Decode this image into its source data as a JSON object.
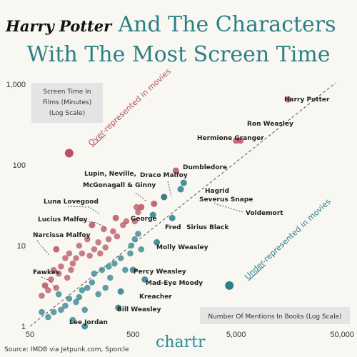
{
  "header": {
    "logo": "Harry Potter",
    "title_line1": "And The Characters",
    "title_line2": "With The Most Screen Time"
  },
  "colors": {
    "over": "#b8545f",
    "under": "#2e7f8a",
    "title": "#2b7f86",
    "background": "#f8f7f2"
  },
  "chart_data": {
    "type": "scatter",
    "title": "And The Characters With The Most Screen Time",
    "xlabel": "Number Of Mentions In Books (Log Scale)",
    "ylabel": "Screen Time In Films (Minutes) (Log Scale)",
    "xscale": "log",
    "yscale": "log",
    "xlim": [
      50,
      50000
    ],
    "ylim": [
      1,
      1000
    ],
    "xticks": [
      "50",
      "500",
      "5,000",
      "50,000"
    ],
    "yticks": [
      "1,000",
      "100",
      "10",
      "1"
    ],
    "diagonal": "x = y reference line (dashed)",
    "annotations": {
      "over": "Over-represented in movies",
      "under": "Under-represented in movies"
    },
    "labeled_points": [
      {
        "name": "Harry Potter",
        "x": 16000,
        "y": 650,
        "group": "over"
      },
      {
        "name": "Ron Weasley",
        "x": 5500,
        "y": 200,
        "group": "over"
      },
      {
        "name": "Hermione Grangeer",
        "display": "Hermione Granger",
        "x": 5000,
        "y": 200,
        "group": "over"
      },
      {
        "name": "Dumbledore",
        "x": 1300,
        "y": 85,
        "group": "over"
      },
      {
        "name": "Draco Malfoy",
        "x": 1000,
        "y": 40,
        "group": "over"
      },
      {
        "name": "Lupin, Neville, McGonagall & Ginny",
        "x": 800,
        "y": 33,
        "group": "over"
      },
      {
        "name": "Hagrid",
        "x": 1550,
        "y": 60,
        "group": "under"
      },
      {
        "name": "Severus Snape",
        "x": 1450,
        "y": 50,
        "group": "under"
      },
      {
        "name": "Voldemort",
        "x": 1000,
        "y": 40,
        "group": "under"
      },
      {
        "name": "George",
        "x": 600,
        "y": 30,
        "group": "over"
      },
      {
        "name": "Fred",
        "x": 780,
        "y": 24,
        "group": "under"
      },
      {
        "name": "Sirius Black",
        "x": 1200,
        "y": 22,
        "group": "under"
      },
      {
        "name": "Luna Lovegood",
        "x": 340,
        "y": 22,
        "group": "over"
      },
      {
        "name": "Lucius Malfoy",
        "x": 200,
        "y": 18,
        "group": "over"
      },
      {
        "name": "Narcissa Malfoy",
        "x": 90,
        "y": 9,
        "group": "over"
      },
      {
        "name": "Molly Weasley",
        "x": 850,
        "y": 11,
        "group": "under"
      },
      {
        "name": "Percy Weasley",
        "x": 500,
        "y": 5,
        "group": "under"
      },
      {
        "name": "Mad-Eye Moody",
        "x": 650,
        "y": 3.8,
        "group": "under"
      },
      {
        "name": "Kreacher",
        "x": 380,
        "y": 2.7,
        "group": "under"
      },
      {
        "name": "Bill Weasley",
        "x": 360,
        "y": 1.7,
        "group": "under"
      },
      {
        "name": "Fawkes",
        "x": 70,
        "y": 3.2,
        "group": "over"
      },
      {
        "name": "Lee Jordan",
        "x": 170,
        "y": 1,
        "group": "under"
      }
    ],
    "legend_points": [
      {
        "key": "over",
        "x": 120,
        "y": 140
      },
      {
        "key": "under",
        "x": 4300,
        "y": 3.2
      }
    ],
    "other_points": [
      {
        "x": 520,
        "y": 20,
        "group": "over"
      },
      {
        "x": 540,
        "y": 30,
        "group": "over"
      },
      {
        "x": 560,
        "y": 26,
        "group": "over"
      },
      {
        "x": 430,
        "y": 20,
        "group": "over"
      },
      {
        "x": 400,
        "y": 18,
        "group": "over"
      },
      {
        "x": 320,
        "y": 15,
        "group": "over"
      },
      {
        "x": 260,
        "y": 16,
        "group": "over"
      },
      {
        "x": 290,
        "y": 12,
        "group": "over"
      },
      {
        "x": 230,
        "y": 11,
        "group": "over"
      },
      {
        "x": 210,
        "y": 9,
        "group": "over"
      },
      {
        "x": 190,
        "y": 7.5,
        "group": "over"
      },
      {
        "x": 160,
        "y": 8,
        "group": "over"
      },
      {
        "x": 140,
        "y": 7,
        "group": "over"
      },
      {
        "x": 130,
        "y": 6,
        "group": "over"
      },
      {
        "x": 120,
        "y": 8,
        "group": "over"
      },
      {
        "x": 110,
        "y": 7,
        "group": "over"
      },
      {
        "x": 100,
        "y": 5.5,
        "group": "over"
      },
      {
        "x": 95,
        "y": 4.5,
        "group": "over"
      },
      {
        "x": 85,
        "y": 5,
        "group": "over"
      },
      {
        "x": 80,
        "y": 3.8,
        "group": "over"
      },
      {
        "x": 75,
        "y": 2.8,
        "group": "over"
      },
      {
        "x": 65,
        "y": 2.4,
        "group": "over"
      },
      {
        "x": 150,
        "y": 10,
        "group": "over"
      },
      {
        "x": 180,
        "y": 12,
        "group": "over"
      },
      {
        "x": 240,
        "y": 8,
        "group": "over"
      },
      {
        "x": 270,
        "y": 9.5,
        "group": "over"
      },
      {
        "x": 350,
        "y": 13,
        "group": "over"
      },
      {
        "x": 115,
        "y": 4,
        "group": "over"
      },
      {
        "x": 125,
        "y": 5,
        "group": "over"
      },
      {
        "x": 90,
        "y": 3,
        "group": "over"
      },
      {
        "x": 560,
        "y": 14,
        "group": "under"
      },
      {
        "x": 520,
        "y": 12,
        "group": "under"
      },
      {
        "x": 480,
        "y": 10,
        "group": "under"
      },
      {
        "x": 600,
        "y": 9,
        "group": "under"
      },
      {
        "x": 470,
        "y": 8,
        "group": "under"
      },
      {
        "x": 380,
        "y": 7,
        "group": "under"
      },
      {
        "x": 330,
        "y": 6,
        "group": "under"
      },
      {
        "x": 290,
        "y": 5.5,
        "group": "under"
      },
      {
        "x": 250,
        "y": 5,
        "group": "under"
      },
      {
        "x": 210,
        "y": 4.5,
        "group": "under"
      },
      {
        "x": 200,
        "y": 3.5,
        "group": "under"
      },
      {
        "x": 180,
        "y": 3,
        "group": "under"
      },
      {
        "x": 160,
        "y": 2.8,
        "group": "under"
      },
      {
        "x": 150,
        "y": 2.3,
        "group": "under"
      },
      {
        "x": 140,
        "y": 2,
        "group": "under"
      },
      {
        "x": 120,
        "y": 2.2,
        "group": "under"
      },
      {
        "x": 110,
        "y": 1.8,
        "group": "under"
      },
      {
        "x": 100,
        "y": 1.6,
        "group": "under"
      },
      {
        "x": 95,
        "y": 2.5,
        "group": "under"
      },
      {
        "x": 85,
        "y": 1.5,
        "group": "under"
      },
      {
        "x": 75,
        "y": 1.3,
        "group": "under"
      },
      {
        "x": 65,
        "y": 1.5,
        "group": "under"
      },
      {
        "x": 130,
        "y": 1.2,
        "group": "under"
      },
      {
        "x": 230,
        "y": 2.5,
        "group": "under"
      },
      {
        "x": 300,
        "y": 4,
        "group": "under"
      },
      {
        "x": 420,
        "y": 5,
        "group": "under"
      },
      {
        "x": 170,
        "y": 1.6,
        "group": "under"
      },
      {
        "x": 270,
        "y": 3,
        "group": "under"
      }
    ]
  },
  "footer": {
    "source": "Source: IMDB via Jetpunk.com, Sporcle",
    "brand": "chartr"
  }
}
